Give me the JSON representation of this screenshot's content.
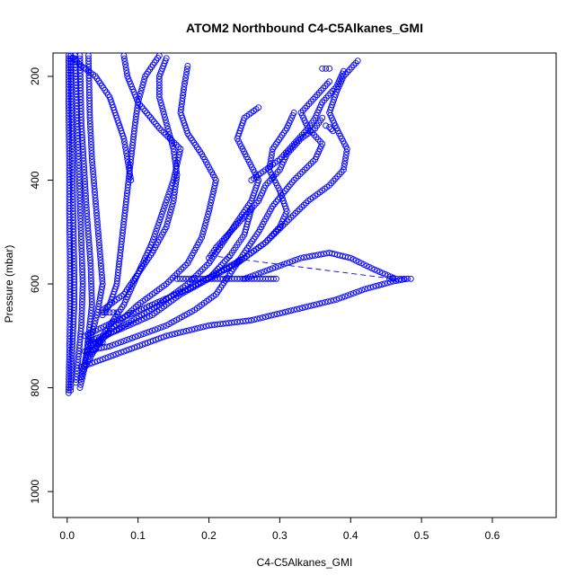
{
  "chart_data": {
    "type": "scatter",
    "title": "ATOM2 Northbound C4-C5Alkanes_GMI",
    "xlabel": "C4-C5Alkanes_GMI",
    "ylabel": "Pressure (mbar)",
    "xlim": [
      -0.02,
      0.69
    ],
    "ylim": [
      1050,
      155
    ],
    "y_reversed": true,
    "grid": false,
    "legend": "none",
    "x_ticks": [
      0.0,
      0.1,
      0.2,
      0.3,
      0.4,
      0.5,
      0.6
    ],
    "x_tick_labels": [
      "0.0",
      "0.1",
      "0.2",
      "0.3",
      "0.4",
      "0.5",
      "0.6"
    ],
    "y_ticks": [
      200,
      400,
      600,
      800,
      1000
    ],
    "y_tick_labels": [
      "200",
      "400",
      "600",
      "800",
      "1000"
    ],
    "point_color": "#0000ff",
    "profiles": [
      [
        [
          0.005,
          805
        ],
        [
          0.006,
          760
        ],
        [
          0.008,
          700
        ],
        [
          0.01,
          640
        ],
        [
          0.01,
          580
        ],
        [
          0.009,
          500
        ],
        [
          0.008,
          420
        ],
        [
          0.007,
          340
        ],
        [
          0.006,
          260
        ],
        [
          0.005,
          160
        ]
      ],
      [
        [
          0.002,
          810
        ],
        [
          0.003,
          740
        ],
        [
          0.004,
          660
        ],
        [
          0.004,
          560
        ],
        [
          0.003,
          460
        ],
        [
          0.003,
          360
        ],
        [
          0.002,
          260
        ],
        [
          0.002,
          160
        ]
      ],
      [
        [
          0.012,
          790
        ],
        [
          0.016,
          740
        ],
        [
          0.02,
          680
        ],
        [
          0.022,
          600
        ],
        [
          0.02,
          520
        ],
        [
          0.018,
          440
        ],
        [
          0.016,
          360
        ],
        [
          0.014,
          280
        ],
        [
          0.012,
          200
        ],
        [
          0.011,
          160
        ]
      ],
      [
        [
          0.018,
          800
        ],
        [
          0.025,
          760
        ],
        [
          0.03,
          700
        ],
        [
          0.035,
          640
        ],
        [
          0.033,
          560
        ],
        [
          0.028,
          470
        ],
        [
          0.024,
          380
        ],
        [
          0.02,
          290
        ],
        [
          0.018,
          160
        ]
      ],
      [
        [
          0.02,
          780
        ],
        [
          0.03,
          720
        ],
        [
          0.042,
          660
        ],
        [
          0.05,
          600
        ],
        [
          0.045,
          520
        ],
        [
          0.04,
          440
        ],
        [
          0.035,
          360
        ],
        [
          0.032,
          280
        ],
        [
          0.03,
          160
        ]
      ],
      [
        [
          0.025,
          760
        ],
        [
          0.05,
          700
        ],
        [
          0.08,
          640
        ],
        [
          0.1,
          580
        ],
        [
          0.12,
          520
        ],
        [
          0.135,
          460
        ],
        [
          0.15,
          400
        ],
        [
          0.16,
          340
        ],
        [
          0.13,
          300
        ],
        [
          0.1,
          250
        ],
        [
          0.085,
          200
        ],
        [
          0.08,
          160
        ]
      ],
      [
        [
          0.03,
          740
        ],
        [
          0.06,
          690
        ],
        [
          0.1,
          640
        ],
        [
          0.14,
          600
        ],
        [
          0.17,
          560
        ],
        [
          0.19,
          510
        ],
        [
          0.2,
          460
        ],
        [
          0.21,
          400
        ],
        [
          0.19,
          350
        ],
        [
          0.17,
          310
        ],
        [
          0.16,
          270
        ],
        [
          0.165,
          220
        ],
        [
          0.17,
          180
        ]
      ],
      [
        [
          0.03,
          720
        ],
        [
          0.08,
          680
        ],
        [
          0.13,
          640
        ],
        [
          0.17,
          600
        ],
        [
          0.2,
          560
        ],
        [
          0.22,
          520
        ],
        [
          0.24,
          480
        ],
        [
          0.26,
          440
        ],
        [
          0.27,
          400
        ],
        [
          0.255,
          360
        ],
        [
          0.24,
          320
        ],
        [
          0.25,
          280
        ],
        [
          0.27,
          260
        ]
      ],
      [
        [
          0.025,
          700
        ],
        [
          0.07,
          670
        ],
        [
          0.12,
          640
        ],
        [
          0.17,
          610
        ],
        [
          0.21,
          580
        ],
        [
          0.25,
          550
        ],
        [
          0.28,
          520
        ],
        [
          0.3,
          490
        ],
        [
          0.31,
          460
        ],
        [
          0.3,
          420
        ],
        [
          0.285,
          380
        ],
        [
          0.29,
          340
        ],
        [
          0.31,
          300
        ],
        [
          0.32,
          270
        ]
      ],
      [
        [
          0.02,
          760
        ],
        [
          0.08,
          730
        ],
        [
          0.14,
          700
        ],
        [
          0.2,
          680
        ],
        [
          0.26,
          670
        ],
        [
          0.32,
          650
        ],
        [
          0.38,
          630
        ],
        [
          0.42,
          610
        ],
        [
          0.46,
          595
        ],
        [
          0.48,
          590
        ]
      ],
      [
        [
          0.025,
          730
        ],
        [
          0.06,
          720
        ],
        [
          0.1,
          700
        ],
        [
          0.14,
          680
        ],
        [
          0.18,
          650
        ],
        [
          0.21,
          620
        ],
        [
          0.23,
          580
        ],
        [
          0.25,
          540
        ],
        [
          0.27,
          500
        ],
        [
          0.29,
          450
        ],
        [
          0.32,
          400
        ],
        [
          0.35,
          360
        ],
        [
          0.36,
          330
        ],
        [
          0.34,
          300
        ],
        [
          0.33,
          270
        ],
        [
          0.35,
          240
        ],
        [
          0.37,
          210
        ]
      ],
      [
        [
          0.03,
          710
        ],
        [
          0.07,
          690
        ],
        [
          0.12,
          660
        ],
        [
          0.16,
          620
        ],
        [
          0.2,
          590
        ],
        [
          0.24,
          560
        ],
        [
          0.28,
          520
        ],
        [
          0.31,
          480
        ],
        [
          0.34,
          440
        ],
        [
          0.37,
          410
        ],
        [
          0.39,
          380
        ],
        [
          0.395,
          340
        ],
        [
          0.38,
          300
        ],
        [
          0.37,
          270
        ],
        [
          0.38,
          230
        ],
        [
          0.39,
          200
        ],
        [
          0.41,
          170
        ]
      ],
      [
        [
          0.05,
          660
        ],
        [
          0.06,
          640
        ],
        [
          0.07,
          600
        ],
        [
          0.075,
          540
        ],
        [
          0.08,
          480
        ],
        [
          0.085,
          420
        ],
        [
          0.09,
          360
        ],
        [
          0.095,
          300
        ],
        [
          0.1,
          250
        ],
        [
          0.11,
          200
        ],
        [
          0.13,
          160
        ]
      ],
      [
        [
          0.05,
          650
        ],
        [
          0.08,
          620
        ],
        [
          0.1,
          580
        ],
        [
          0.12,
          540
        ],
        [
          0.14,
          490
        ],
        [
          0.15,
          440
        ],
        [
          0.155,
          390
        ],
        [
          0.15,
          340
        ],
        [
          0.14,
          290
        ],
        [
          0.13,
          240
        ],
        [
          0.13,
          200
        ],
        [
          0.14,
          165
        ]
      ],
      [
        [
          0.155,
          590
        ],
        [
          0.18,
          590
        ],
        [
          0.2,
          590
        ],
        [
          0.22,
          590
        ],
        [
          0.24,
          590
        ],
        [
          0.26,
          590
        ],
        [
          0.28,
          590
        ],
        [
          0.295,
          590
        ]
      ],
      [
        [
          0.2,
          590
        ],
        [
          0.21,
          575
        ],
        [
          0.22,
          560
        ],
        [
          0.23,
          545
        ],
        [
          0.24,
          525
        ],
        [
          0.25,
          505
        ],
        [
          0.255,
          480
        ],
        [
          0.26,
          455
        ]
      ],
      [
        [
          0.05,
          655
        ],
        [
          0.06,
          655
        ],
        [
          0.07,
          655
        ]
      ],
      [
        [
          0.03,
          720
        ],
        [
          0.04,
          715
        ],
        [
          0.05,
          712
        ]
      ],
      [
        [
          0.36,
          185
        ],
        [
          0.365,
          185
        ],
        [
          0.37,
          185
        ]
      ],
      [
        [
          0.365,
          295
        ],
        [
          0.37,
          298
        ],
        [
          0.375,
          305
        ]
      ],
      [
        [
          0.455,
          590
        ],
        [
          0.465,
          590
        ],
        [
          0.475,
          590
        ],
        [
          0.485,
          590
        ]
      ],
      [
        [
          0.005,
          160
        ],
        [
          0.02,
          180
        ],
        [
          0.04,
          200
        ],
        [
          0.06,
          240
        ],
        [
          0.07,
          280
        ],
        [
          0.08,
          320
        ],
        [
          0.085,
          360
        ],
        [
          0.09,
          400
        ]
      ],
      [
        [
          0.2,
          550
        ],
        [
          0.21,
          530
        ],
        [
          0.23,
          500
        ],
        [
          0.25,
          470
        ],
        [
          0.27,
          440
        ],
        [
          0.28,
          410
        ],
        [
          0.3,
          380
        ],
        [
          0.31,
          350
        ],
        [
          0.33,
          320
        ],
        [
          0.35,
          300
        ],
        [
          0.36,
          280
        ]
      ],
      [
        [
          0.26,
          400
        ],
        [
          0.28,
          380
        ],
        [
          0.3,
          360
        ],
        [
          0.32,
          330
        ],
        [
          0.34,
          300
        ],
        [
          0.35,
          280
        ],
        [
          0.36,
          250
        ],
        [
          0.38,
          220
        ],
        [
          0.39,
          190
        ]
      ],
      [
        [
          0.25,
          590
        ],
        [
          0.27,
          580
        ],
        [
          0.29,
          570
        ],
        [
          0.31,
          560
        ],
        [
          0.33,
          550
        ],
        [
          0.35,
          545
        ],
        [
          0.37,
          540
        ],
        [
          0.4,
          550
        ],
        [
          0.43,
          570
        ],
        [
          0.46,
          588
        ]
      ]
    ],
    "dashed_segment": [
      [
        0.2,
        545
      ],
      [
        0.46,
        590
      ]
    ]
  }
}
